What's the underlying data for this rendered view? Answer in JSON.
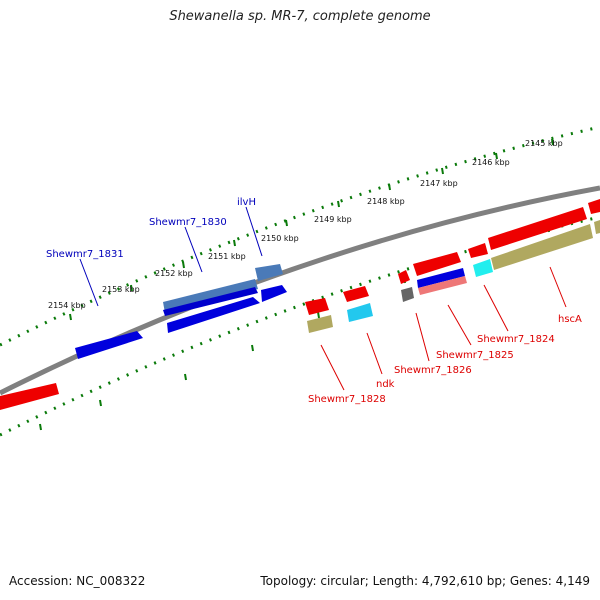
{
  "title": "Shewanella sp. MR-7, complete genome",
  "accession": "Accession: NC_008322",
  "topology": "Topology: circular; Length: 4,792,610 bp; Genes: 4,149",
  "ticks": [
    "2145 kbp",
    "2146 kbp",
    "2147 kbp",
    "2148 kbp",
    "2149 kbp",
    "2150 kbp",
    "2151 kbp",
    "2152 kbp",
    "2153 kbp",
    "2154 kbp"
  ],
  "genes_top": [
    "ilvH",
    "Shewmr7_1830",
    "Shewmr7_1831"
  ],
  "genes_bottom": [
    "hscA",
    "Shewmr7_1824",
    "Shewmr7_1825",
    "Shewmr7_1826",
    "ndk",
    "Shewmr7_1828"
  ],
  "colors": {
    "forward": "#0000dd",
    "reverse": "#ee0000",
    "backbone": "#808080",
    "dots": "#0a7a0a",
    "label_blue": "#0000bb",
    "label_red": "#dd0000",
    "khaki": "#b0a860",
    "cyan": "#22c8ee"
  }
}
